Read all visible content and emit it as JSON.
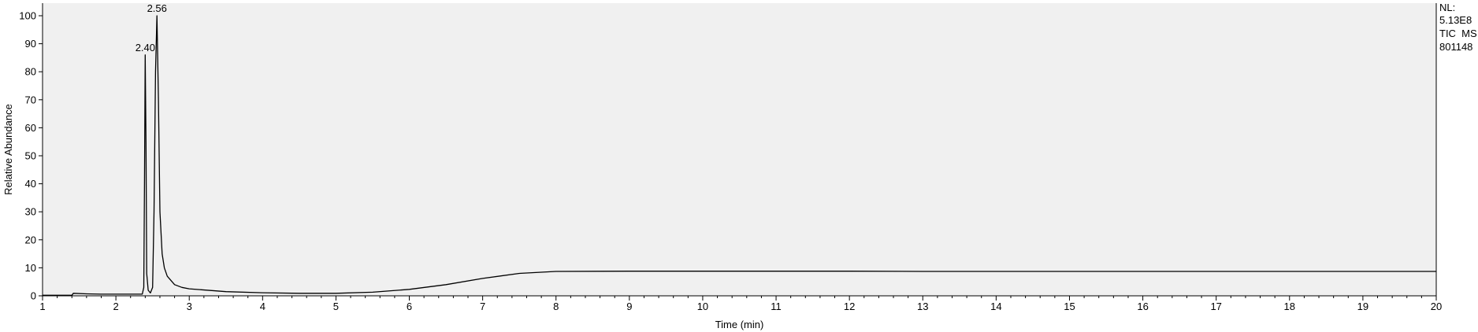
{
  "chart_data": {
    "type": "line",
    "title": "",
    "xlabel": "Time (min)",
    "ylabel": "Relative Abundance",
    "xlim": [
      1,
      20
    ],
    "ylim": [
      0,
      100
    ],
    "x_ticks": [
      1,
      2,
      3,
      4,
      5,
      6,
      7,
      8,
      9,
      10,
      11,
      12,
      13,
      14,
      15,
      16,
      17,
      18,
      19,
      20
    ],
    "y_ticks": [
      0,
      10,
      20,
      30,
      40,
      50,
      60,
      70,
      80,
      90,
      100
    ],
    "grid": false,
    "plot_background": "#f0f0f0",
    "line_color": "#000000",
    "info_lines": [
      "NL:",
      "5.13E8",
      "TIC  MS",
      "801148"
    ],
    "peak_labels": [
      {
        "text": "2.40",
        "x": 2.4,
        "y": 86
      },
      {
        "text": "2.56",
        "x": 2.56,
        "y": 100
      }
    ],
    "series": [
      {
        "points": [
          [
            1.0,
            0.2
          ],
          [
            1.2,
            0.2
          ],
          [
            1.4,
            0.2
          ],
          [
            1.42,
            0.9
          ],
          [
            1.6,
            0.7
          ],
          [
            1.8,
            0.6
          ],
          [
            2.0,
            0.6
          ],
          [
            2.2,
            0.6
          ],
          [
            2.36,
            0.6
          ],
          [
            2.38,
            3
          ],
          [
            2.39,
            40
          ],
          [
            2.4,
            86
          ],
          [
            2.41,
            55
          ],
          [
            2.42,
            8
          ],
          [
            2.44,
            2
          ],
          [
            2.47,
            1
          ],
          [
            2.5,
            3
          ],
          [
            2.52,
            30
          ],
          [
            2.54,
            80
          ],
          [
            2.56,
            100
          ],
          [
            2.58,
            70
          ],
          [
            2.6,
            30
          ],
          [
            2.63,
            15
          ],
          [
            2.66,
            10
          ],
          [
            2.7,
            7
          ],
          [
            2.8,
            4
          ],
          [
            2.9,
            3
          ],
          [
            3.0,
            2.5
          ],
          [
            3.5,
            1.5
          ],
          [
            4.0,
            1.1
          ],
          [
            4.5,
            0.9
          ],
          [
            5.0,
            0.9
          ],
          [
            5.5,
            1.3
          ],
          [
            6.0,
            2.3
          ],
          [
            6.5,
            4.0
          ],
          [
            7.0,
            6.2
          ],
          [
            7.5,
            8.0
          ],
          [
            8.0,
            8.7
          ],
          [
            9.0,
            8.8
          ],
          [
            10.0,
            8.8
          ],
          [
            11.0,
            8.8
          ],
          [
            12.0,
            8.8
          ],
          [
            13.0,
            8.7
          ],
          [
            14.0,
            8.7
          ],
          [
            15.0,
            8.7
          ],
          [
            16.0,
            8.7
          ],
          [
            17.0,
            8.7
          ],
          [
            18.0,
            8.7
          ],
          [
            19.0,
            8.7
          ],
          [
            20.0,
            8.7
          ]
        ]
      }
    ]
  }
}
